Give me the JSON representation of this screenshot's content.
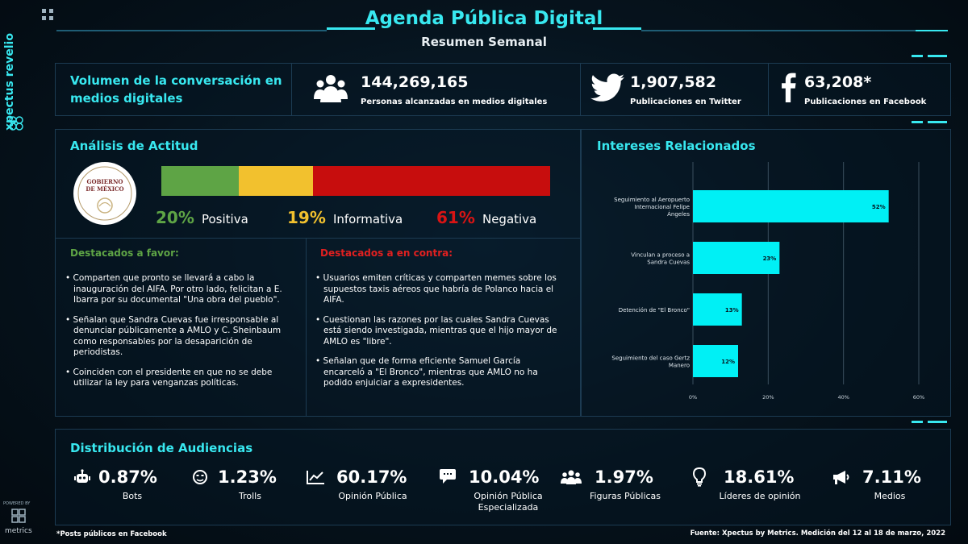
{
  "brand": {
    "side_logo": "xpectus revelio",
    "powered_by": "POWERED BY",
    "metrics": "metrics"
  },
  "header": {
    "title": "Agenda Pública Digital",
    "subtitle": "Resumen Semanal"
  },
  "volume": {
    "title": "Volumen de la conversación en medios digitales",
    "stats": [
      {
        "icon": "people-icon",
        "value": "144,269,165",
        "label": "Personas alcanzadas en medios digitales"
      },
      {
        "icon": "twitter-icon",
        "value": "1,907,582",
        "label": "Publicaciones en Twitter"
      },
      {
        "icon": "facebook-icon",
        "value": "63,208*",
        "label": "Publicaciones en Facebook"
      }
    ]
  },
  "attitude": {
    "title": "Análisis de Actitud",
    "seal_text": "GOBIERNO DE MÉXICO",
    "segments": [
      {
        "pct": "20%",
        "label": "Positiva",
        "value": 20,
        "color": "#5ea445"
      },
      {
        "pct": "19%",
        "label": "Informativa",
        "value": 19,
        "color": "#f2c12e"
      },
      {
        "pct": "61%",
        "label": "Negativa",
        "value": 61,
        "color": "#c70d0d"
      }
    ]
  },
  "favor": {
    "title": "Destacados a favor:",
    "items": [
      "Comparten que pronto se llevará a cabo la inauguración del AIFA. Por otro lado, felicitan a E. Ibarra por su documental \"Una obra del pueblo\".",
      "Señalan que Sandra Cuevas fue irresponsable al denunciar públicamente a AMLO y C. Sheinbaum como responsables por la desaparición de periodistas.",
      "Coinciden con el presidente en que no se debe utilizar la ley para venganzas políticas."
    ]
  },
  "contra": {
    "title": "Destacados a en contra:",
    "items": [
      "Usuarios emiten críticas y comparten memes sobre los supuestos taxis aéreos que habría de Polanco hacia el AIFA.",
      "Cuestionan las razones por las cuales Sandra Cuevas está siendo investigada, mientras que el hijo mayor de AMLO es \"libre\".",
      "Señalan que de forma eficiente Samuel García encarceló a \"El Bronco\", mientras que AMLO no ha podido enjuiciar a expresidentes."
    ]
  },
  "interests": {
    "title": "Intereses Relacionados"
  },
  "chart_data": {
    "type": "bar",
    "orientation": "horizontal",
    "title": "Intereses Relacionados",
    "categories": [
      "Seguimiento al Aeropuerto Internacional Felipe Ángeles",
      "Vinculan a proceso a Sandra Cuevas",
      "Detención de \"El Bronco\"",
      "Seguimiento del caso Gertz Manero"
    ],
    "values": [
      52,
      23,
      13,
      12
    ],
    "value_labels": [
      "52%",
      "23%",
      "13%",
      "12%"
    ],
    "xticks": [
      "0%",
      "20%",
      "40%",
      "60%"
    ],
    "xlim": [
      0,
      60
    ],
    "grid": true,
    "bar_color": "#00f0f5"
  },
  "audience": {
    "title": "Distribución de Audiencias",
    "items": [
      {
        "icon": "bot-icon",
        "value": "0.87%",
        "label": "Bots"
      },
      {
        "icon": "troll-icon",
        "value": "1.23%",
        "label": "Trolls"
      },
      {
        "icon": "line-chart-icon",
        "value": "60.17%",
        "label": "Opinión Pública"
      },
      {
        "icon": "chat-icon",
        "value": "10.04%",
        "label": "Opinión Pública Especializada"
      },
      {
        "icon": "group-icon",
        "value": "1.97%",
        "label": "Figuras Públicas"
      },
      {
        "icon": "lightbulb-icon",
        "value": "18.61%",
        "label": "Líderes de opinión"
      },
      {
        "icon": "megaphone-icon",
        "value": "7.11%",
        "label": "Medios"
      }
    ]
  },
  "footer": {
    "note": "*Posts públicos en Facebook",
    "source": "Fuente: Xpectus by Metrics. Medición del 12 al 18 de marzo, 2022"
  }
}
